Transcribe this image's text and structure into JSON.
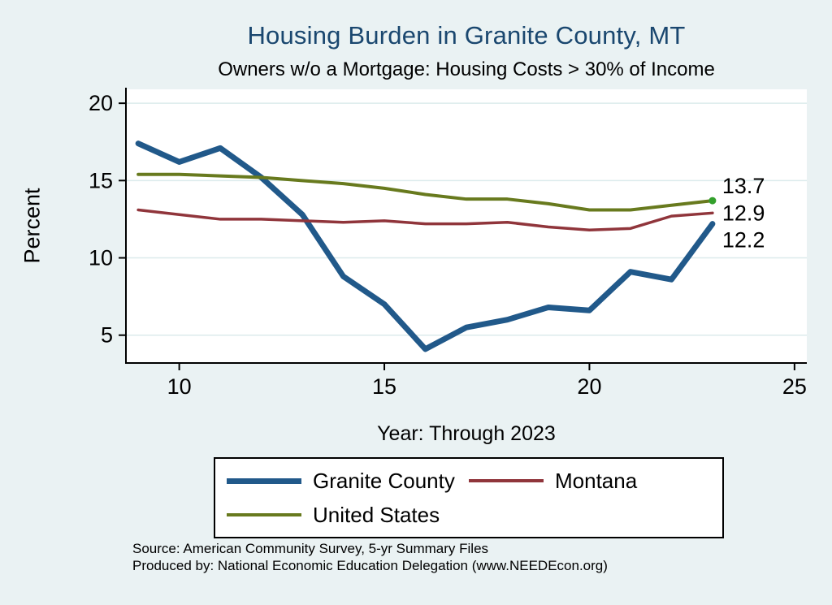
{
  "page": {
    "background": "#eaf2f3",
    "title": "Housing Burden in Granite County, MT",
    "title_color": "#1a476f",
    "subtitle": "Owners w/o a Mortgage: Housing Costs > 30% of Income"
  },
  "chart_data": {
    "type": "line",
    "title": "Housing Burden in Granite County, MT",
    "subtitle": "Owners w/o a Mortgage: Housing Costs > 30% of Income",
    "xlabel": "Year: Through 2023",
    "ylabel": "Percent",
    "x": [
      9,
      10,
      11,
      12,
      13,
      14,
      15,
      16,
      17,
      18,
      19,
      20,
      21,
      22,
      23
    ],
    "xticks": [
      10,
      15,
      20,
      25
    ],
    "yticks": [
      5,
      10,
      15,
      20
    ],
    "xlim": [
      8.7,
      25.3
    ],
    "ylim": [
      3.2,
      20.9
    ],
    "grid": "horizontal",
    "plot_background": "#ffffff",
    "grid_color": "#dcebec",
    "series": [
      {
        "name": "Granite County",
        "color": "#21598a",
        "width": 7,
        "values": [
          17.4,
          16.2,
          17.1,
          15.2,
          12.8,
          8.8,
          7.0,
          4.1,
          5.5,
          6.0,
          6.8,
          6.6,
          9.1,
          8.6,
          12.2
        ]
      },
      {
        "name": "Montana",
        "color": "#90353b",
        "width": 3.5,
        "values": [
          13.1,
          12.8,
          12.5,
          12.5,
          12.4,
          12.3,
          12.4,
          12.2,
          12.2,
          12.3,
          12.0,
          11.8,
          11.9,
          12.7,
          12.9
        ]
      },
      {
        "name": "United States",
        "color": "#687a1e",
        "width": 4,
        "values": [
          15.4,
          15.4,
          15.3,
          15.2,
          15.0,
          14.8,
          14.5,
          14.1,
          13.8,
          13.8,
          13.5,
          13.1,
          13.1,
          13.4,
          13.7
        ]
      }
    ],
    "end_marker": {
      "x": 23,
      "value": 13.7,
      "color": "#33a02c"
    },
    "end_labels": [
      {
        "text": "13.7",
        "value": 13.7,
        "dy": -18
      },
      {
        "text": "12.9",
        "value": 12.9,
        "dy": 0
      },
      {
        "text": "12.2",
        "value": 12.2,
        "dy": 20
      }
    ],
    "legend_position": "bottom"
  },
  "footer": {
    "line1": "Source: American Community Survey, 5-yr Summary Files",
    "line2": "Produced by: National Economic Education Delegation (www.NEEDEcon.org)"
  }
}
